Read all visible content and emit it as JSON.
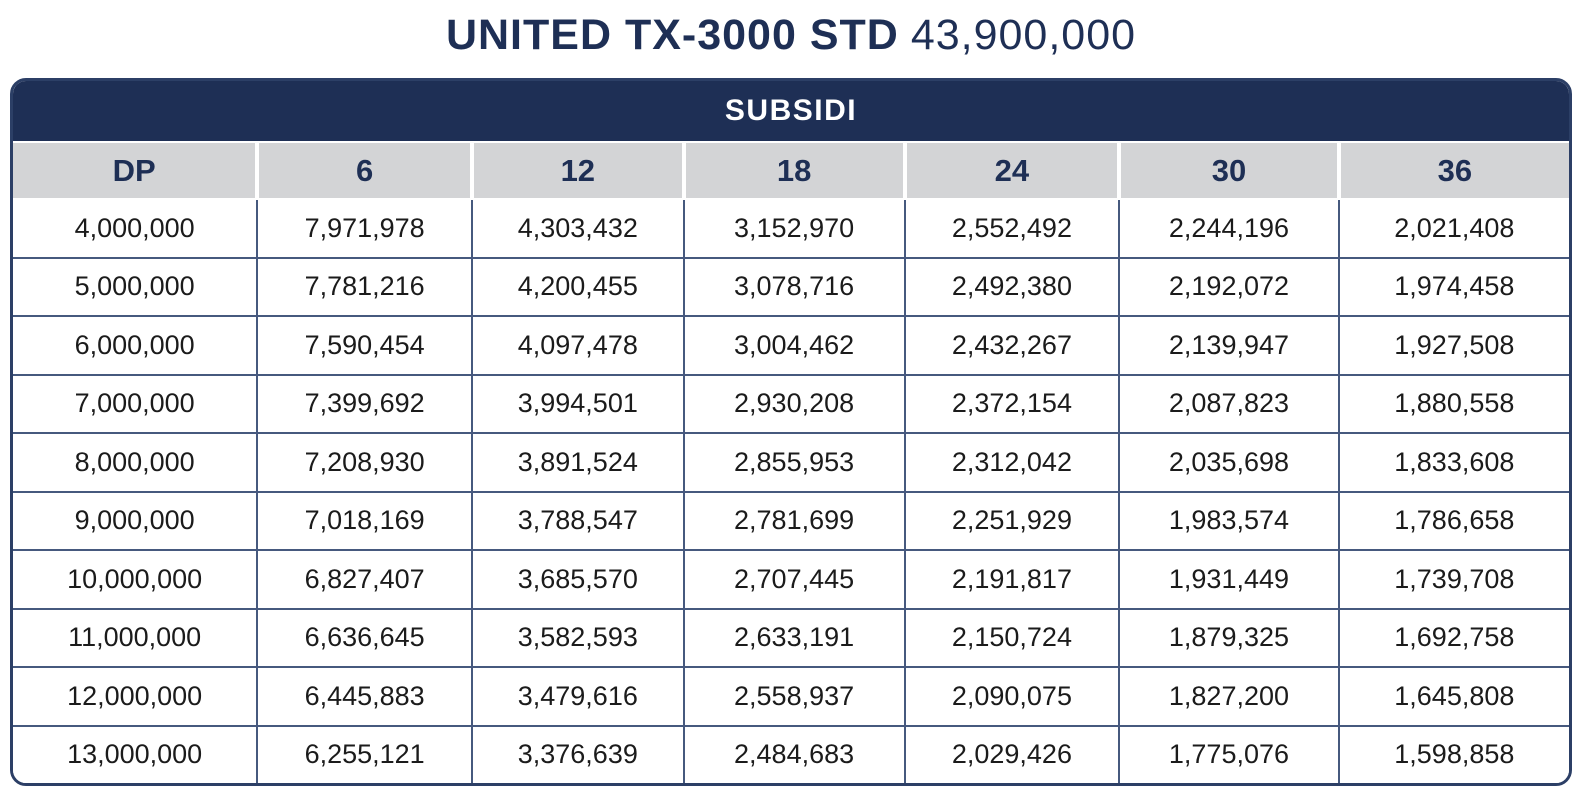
{
  "page_title": {
    "model": "UNITED TX-3000 STD",
    "price": "43,900,000"
  },
  "chart_data": {
    "type": "table",
    "title": "UNITED TX-3000 STD 43,900,000",
    "section_header": "SUBSIDI",
    "columns": [
      "DP",
      "6",
      "12",
      "18",
      "24",
      "30",
      "36"
    ],
    "rows": [
      [
        "4,000,000",
        "7,971,978",
        "4,303,432",
        "3,152,970",
        "2,552,492",
        "2,244,196",
        "2,021,408"
      ],
      [
        "5,000,000",
        "7,781,216",
        "4,200,455",
        "3,078,716",
        "2,492,380",
        "2,192,072",
        "1,974,458"
      ],
      [
        "6,000,000",
        "7,590,454",
        "4,097,478",
        "3,004,462",
        "2,432,267",
        "2,139,947",
        "1,927,508"
      ],
      [
        "7,000,000",
        "7,399,692",
        "3,994,501",
        "2,930,208",
        "2,372,154",
        "2,087,823",
        "1,880,558"
      ],
      [
        "8,000,000",
        "7,208,930",
        "3,891,524",
        "2,855,953",
        "2,312,042",
        "2,035,698",
        "1,833,608"
      ],
      [
        "9,000,000",
        "7,018,169",
        "3,788,547",
        "2,781,699",
        "2,251,929",
        "1,983,574",
        "1,786,658"
      ],
      [
        "10,000,000",
        "6,827,407",
        "3,685,570",
        "2,707,445",
        "2,191,817",
        "1,931,449",
        "1,739,708"
      ],
      [
        "11,000,000",
        "6,636,645",
        "3,582,593",
        "2,633,191",
        "2,150,724",
        "1,879,325",
        "1,692,758"
      ],
      [
        "12,000,000",
        "6,445,883",
        "3,479,616",
        "2,558,937",
        "2,090,075",
        "1,827,200",
        "1,645,808"
      ],
      [
        "13,000,000",
        "6,255,121",
        "3,376,639",
        "2,484,683",
        "2,029,426",
        "1,775,076",
        "1,598,858"
      ]
    ]
  },
  "colors": {
    "navy": "#1e2f55",
    "grid_line": "#46597e",
    "header_gray": "#d3d4d6",
    "data_text": "#1b1b1b",
    "header_text": "#ffffff"
  }
}
